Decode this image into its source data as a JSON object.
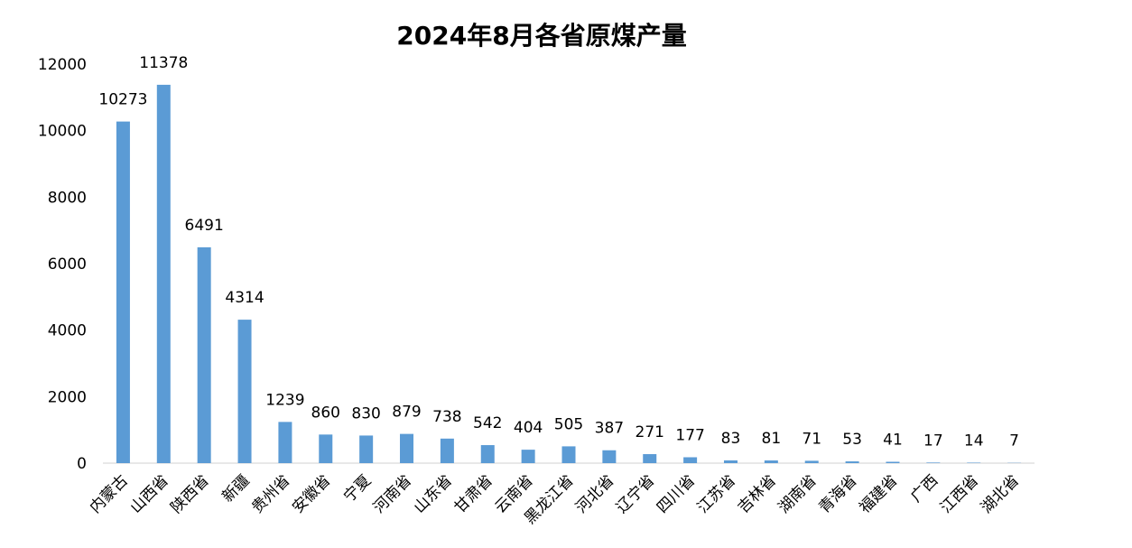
{
  "chart_data": {
    "type": "bar",
    "title": "2024年8月各省原煤产量",
    "xlabel": "",
    "ylabel": "",
    "ylim": [
      0,
      12000
    ],
    "yticks": [
      0,
      2000,
      4000,
      6000,
      8000,
      10000,
      12000
    ],
    "grid": false,
    "legend": "none",
    "bar_color": "#5b9bd5",
    "categories": [
      "内蒙古",
      "山西省",
      "陕西省",
      "新疆",
      "贵州省",
      "安徽省",
      "宁夏",
      "河南省",
      "山东省",
      "甘肃省",
      "云南省",
      "黑龙江省",
      "河北省",
      "辽宁省",
      "四川省",
      "江苏省",
      "吉林省",
      "湖南省",
      "青海省",
      "福建省",
      "广西",
      "江西省",
      "湖北省"
    ],
    "values": [
      10273,
      11378,
      6491,
      4314,
      1239,
      860,
      830,
      879,
      738,
      542,
      404,
      505,
      387,
      271,
      177,
      83,
      81,
      71,
      53,
      41,
      17,
      14,
      7
    ]
  }
}
